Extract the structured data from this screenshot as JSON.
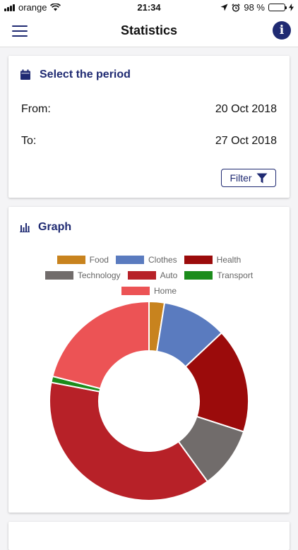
{
  "status_bar": {
    "carrier": "orange",
    "time": "21:34",
    "battery_percent": "98 %",
    "battery_level": 0.98
  },
  "header": {
    "title": "Statistics"
  },
  "period_card": {
    "title": "Select the period",
    "from_label": "From:",
    "from_value": "20 Oct 2018",
    "to_label": "To:",
    "to_value": "27 Oct 2018",
    "filter_label": "Filter"
  },
  "graph_card": {
    "title": "Graph"
  },
  "chart_data": {
    "type": "pie",
    "donut": true,
    "categories": [
      "Food",
      "Clothes",
      "Health",
      "Technology",
      "Auto",
      "Transport",
      "Home"
    ],
    "values": [
      2.5,
      10.5,
      17,
      10,
      38,
      1,
      21
    ],
    "colors": [
      "#c8831e",
      "#5a7bbf",
      "#9b0b0b",
      "#716c6b",
      "#b72128",
      "#1b8c1b",
      "#ec5355"
    ],
    "legend_position": "top"
  },
  "colors": {
    "accent": "#1f2a72",
    "background": "#f4f4f6"
  }
}
